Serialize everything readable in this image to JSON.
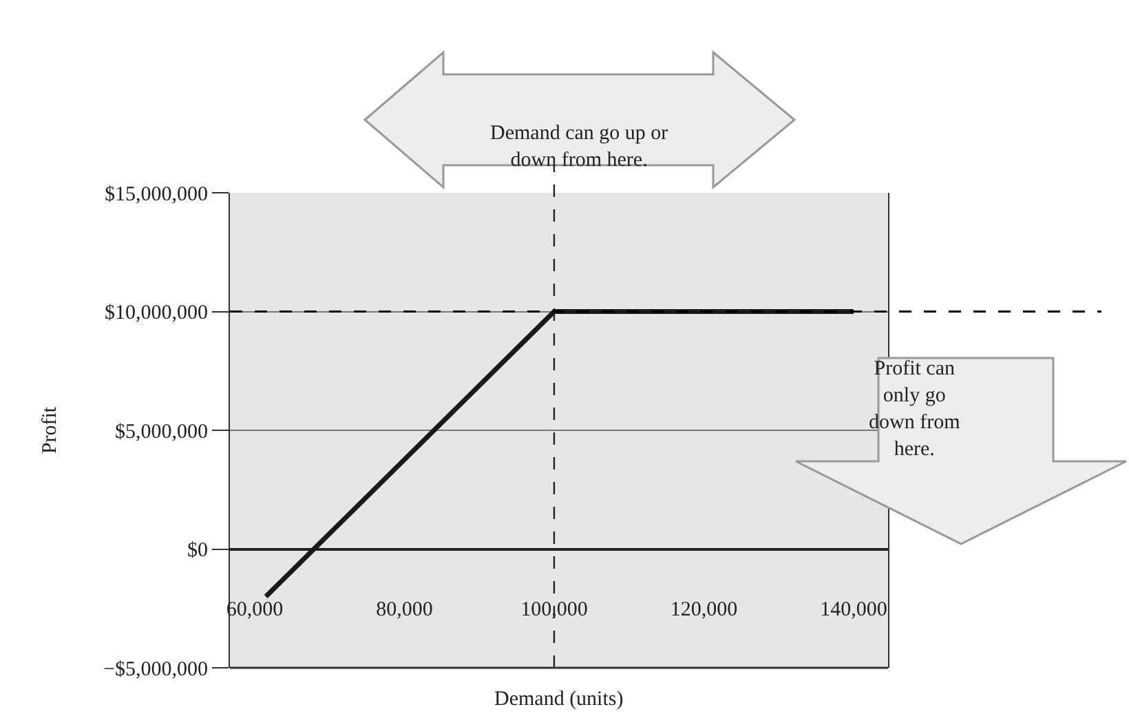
{
  "chart_data": {
    "type": "line",
    "xlabel": "Demand (units)",
    "ylabel": "Profit",
    "x": [
      61500,
      100000,
      140000
    ],
    "series": [
      {
        "color": "#1a1a1a",
        "values": [
          -2000000,
          10000000,
          10000000
        ]
      }
    ],
    "xlim": [
      56700,
      144600
    ],
    "xticks": [
      {
        "value": 60000,
        "label": "60,000"
      },
      {
        "value": 80000,
        "label": "80,000"
      },
      {
        "value": 100000,
        "label": "100,000"
      },
      {
        "value": 120000,
        "label": "120,000"
      },
      {
        "value": 140000,
        "label": "140,000"
      }
    ],
    "ylim": [
      -5000000,
      15000000
    ],
    "yticks": [
      {
        "value": -5000000,
        "label": "−$5,000,000"
      },
      {
        "value": 0,
        "label": "$0"
      },
      {
        "value": 5000000,
        "label": "$5,000,000"
      },
      {
        "value": 10000000,
        "label": "$10,000,000"
      },
      {
        "value": 15000000,
        "label": "$15,000,000"
      }
    ],
    "grid": "y",
    "marker": "none",
    "line_style": "solid",
    "ref_lines": [
      {
        "axis": "x",
        "value": 100000,
        "line_style": "dashed"
      },
      {
        "axis": "y",
        "value": 10000000,
        "line_style": "dashed"
      }
    ],
    "annotations": [
      "Demand can go up or\ndown from here.",
      "Profit can\nonly go\ndown from\nhere."
    ]
  }
}
